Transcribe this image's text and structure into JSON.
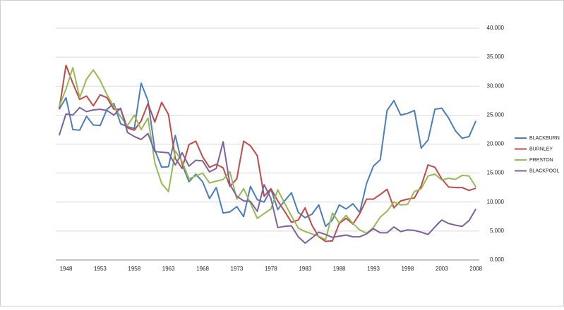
{
  "chart_data": {
    "type": "line",
    "categories": [
      null,
      "1948",
      null,
      null,
      null,
      null,
      "1953",
      null,
      null,
      null,
      null,
      "1958",
      null,
      null,
      null,
      null,
      "1963",
      null,
      null,
      null,
      null,
      "1968",
      null,
      null,
      null,
      null,
      "1973",
      null,
      null,
      null,
      null,
      "1978",
      null,
      null,
      null,
      null,
      "1983",
      null,
      null,
      null,
      null,
      "1988",
      null,
      null,
      null,
      null,
      "1993",
      null,
      null,
      null,
      null,
      "1998",
      null,
      null,
      null,
      null,
      "2003",
      null,
      null,
      null,
      null,
      "2008"
    ],
    "series": [
      {
        "name": "BLACKBURN",
        "color": "#4a7ebb",
        "values": [
          26000,
          28000,
          22500,
          22400,
          24800,
          23300,
          23200,
          26000,
          27000,
          23500,
          23000,
          22700,
          30500,
          27500,
          19000,
          16000,
          16100,
          21500,
          16500,
          13500,
          14800,
          13500,
          10600,
          12500,
          8100,
          8300,
          9200,
          7500,
          12700,
          10400,
          10000,
          12200,
          8700,
          10200,
          11600,
          8200,
          7300,
          7900,
          9500,
          5800,
          6900,
          9500,
          8800,
          9700,
          8200,
          13200,
          16200,
          17300,
          25800,
          27500,
          25000,
          25300,
          25800,
          19300,
          20700,
          26000,
          26200,
          24500,
          22300,
          21000,
          21300,
          24000
        ]
      },
      {
        "name": "BURNLEY",
        "color": "#be4b48",
        "values": [
          26000,
          33600,
          30500,
          27700,
          28300,
          26600,
          28500,
          28000,
          26000,
          26000,
          22800,
          22400,
          24000,
          27000,
          23800,
          27200,
          25100,
          17500,
          15800,
          19900,
          20500,
          17800,
          16000,
          16500,
          15900,
          12700,
          14000,
          20500,
          19700,
          18000,
          11000,
          12300,
          10200,
          8400,
          6500,
          6900,
          9000,
          6000,
          4000,
          3200,
          3300,
          6300,
          7200,
          6200,
          8000,
          10500,
          10500,
          11300,
          12200,
          9000,
          10200,
          10500,
          10700,
          12800,
          16400,
          16000,
          14000,
          12600,
          12500,
          12500,
          12000,
          12400
        ]
      },
      {
        "name": "PRESTON",
        "color": "#98b954",
        "values": [
          26500,
          29500,
          33200,
          28000,
          31200,
          32800,
          31000,
          28500,
          26500,
          24700,
          23200,
          25000,
          22500,
          24500,
          16800,
          13200,
          11800,
          18800,
          17000,
          14000,
          14500,
          15000,
          13300,
          13600,
          13900,
          15200,
          10500,
          12300,
          9800,
          7200,
          8000,
          8800,
          12100,
          9800,
          7600,
          5500,
          4900,
          4500,
          4100,
          3500,
          8100,
          6400,
          7700,
          6300,
          5200,
          4600,
          5600,
          7400,
          8400,
          10000,
          9500,
          9600,
          11800,
          12300,
          14500,
          14800,
          13800,
          14100,
          13900,
          14600,
          14500,
          12600
        ]
      },
      {
        "name": "BLACKPOOL",
        "color": "#7d60a0",
        "values": [
          21500,
          25200,
          25000,
          26300,
          25600,
          25900,
          26000,
          25800,
          25000,
          26200,
          22000,
          21300,
          20800,
          21800,
          18700,
          18600,
          18500,
          16400,
          18500,
          16200,
          17200,
          17100,
          15200,
          15800,
          20400,
          13000,
          11000,
          10200,
          10100,
          8400,
          13000,
          10600,
          5600,
          5800,
          5900,
          4000,
          2900,
          3800,
          4800,
          4400,
          3900,
          4100,
          4300,
          4000,
          4000,
          4500,
          5400,
          4700,
          4700,
          5700,
          4900,
          5200,
          5100,
          4800,
          4400,
          5700,
          6900,
          6300,
          6000,
          5800,
          6800,
          8800
        ]
      }
    ],
    "ylim": [
      0,
      40000
    ],
    "yticks": [
      {
        "value": 0,
        "label": "0.000"
      },
      {
        "value": 5000,
        "label": "5.000"
      },
      {
        "value": 10000,
        "label": "10.000"
      },
      {
        "value": 15000,
        "label": "15.000"
      },
      {
        "value": 20000,
        "label": "20.000"
      },
      {
        "value": 25000,
        "label": "25.000"
      },
      {
        "value": 30000,
        "label": "30.000"
      },
      {
        "value": 35000,
        "label": "35.000"
      },
      {
        "value": 40000,
        "label": "40.000"
      }
    ],
    "grid": true,
    "legend": "right"
  }
}
